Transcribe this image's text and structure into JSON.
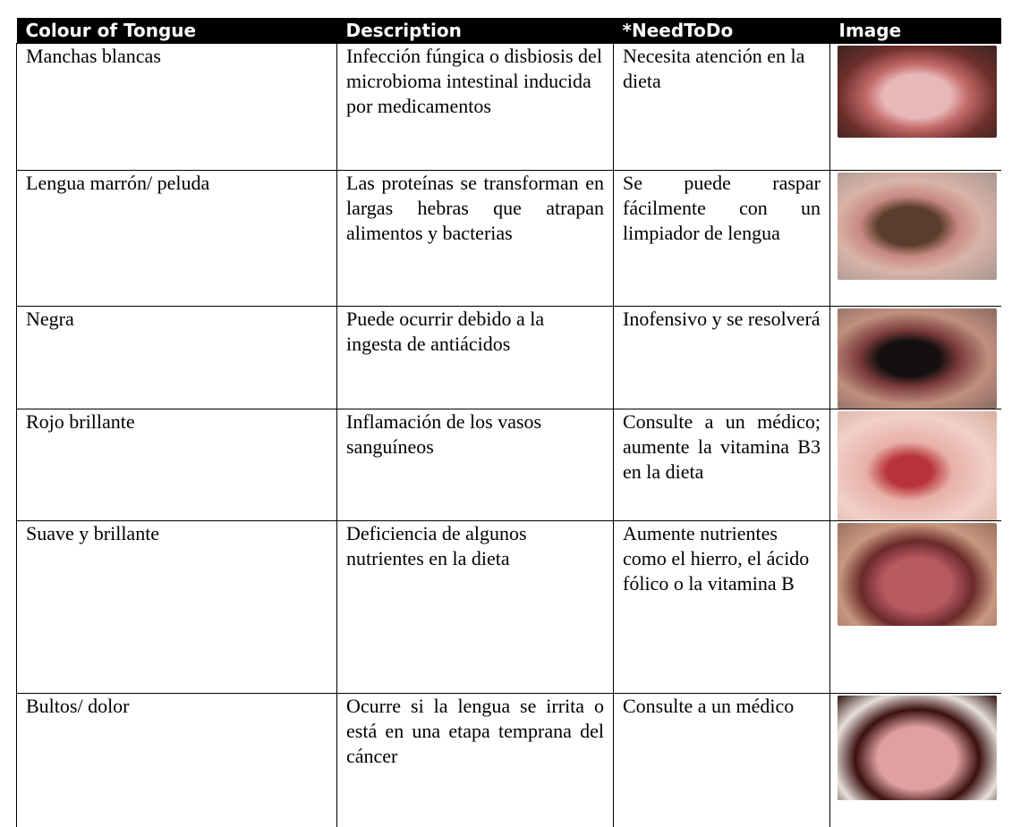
{
  "table": {
    "header": [
      "Colour of Tongue",
      "Description",
      "*NeedToDo",
      "Image"
    ],
    "rows": [
      [
        "Manchas blancas",
        "Infección fúngica o disbiosis del microbioma intestinal inducida por medicamentos",
        "Necesita atención en la dieta"
      ],
      [
        "Lengua marrón/ peluda",
        "Las proteínas se transforman en largas hebras que atrapan alimentos y bacterias",
        "Se puede raspar fácilmente con un limpiador de lengua"
      ],
      [
        "Negra",
        "Puede ocurrir debido a la ingesta de antiácidos",
        "Inofensivo y se resolverá"
      ],
      [
        "Rojo brillante",
        "Inflamación de los vasos sanguíneos",
        "Consulte a un médico; aumente la vitamina B3 en la dieta"
      ],
      [
        "Suave y brillante",
        "Deficiencia de algunos nutrientes en la dieta",
        "Aumente nutrientes como el hierro, el ácido fólico o la vitamina B"
      ],
      [
        "Bultos/ dolor",
        "Ocurre si la lengua se irrita o está en una etapa temprana del cáncer",
        "Consulte a un médico"
      ]
    ]
  }
}
